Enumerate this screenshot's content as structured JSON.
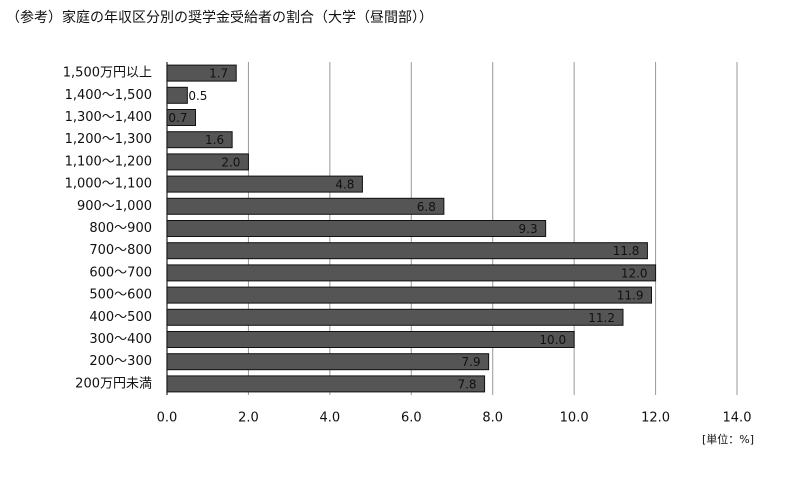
{
  "chart_data": {
    "type": "hbar",
    "title": "（参考）家庭の年収区分別の奨学金受給者の割合（大学（昼間部））",
    "unit_label": "[単位：%]",
    "categories": [
      "1,500万円以上",
      "1,400～1,500",
      "1,300～1,400",
      "1,200～1,300",
      "1,100～1,200",
      "1,000～1,100",
      "900～1,000",
      "800～900",
      "700～800",
      "600～700",
      "500～600",
      "400～500",
      "300～400",
      "200～300",
      "200万円未満"
    ],
    "values": [
      1.7,
      0.5,
      0.7,
      1.6,
      2.0,
      4.8,
      6.8,
      9.3,
      11.8,
      12.0,
      11.9,
      11.2,
      10.0,
      7.9,
      7.8
    ],
    "value_labels": [
      "1.7",
      "0.5",
      "0.7",
      "1.6",
      "2.0",
      "4.8",
      "6.8",
      "9.3",
      "11.8",
      "12.0",
      "11.9",
      "11.2",
      "10.0",
      "7.9",
      "7.8"
    ],
    "color": "#555555",
    "xlim": [
      0,
      14
    ],
    "xticks": [
      {
        "value": 0,
        "label": "0.0"
      },
      {
        "value": 2,
        "label": "2.0"
      },
      {
        "value": 4,
        "label": "4.0"
      },
      {
        "value": 6,
        "label": "6.0"
      },
      {
        "value": 8,
        "label": "8.0"
      },
      {
        "value": 10,
        "label": "10.0"
      },
      {
        "value": 12,
        "label": "12.0"
      },
      {
        "value": 14,
        "label": "14.0"
      }
    ],
    "grid": true
  }
}
